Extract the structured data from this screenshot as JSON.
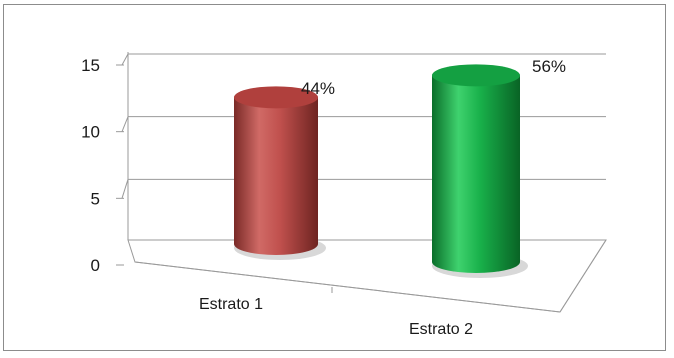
{
  "chart_data": {
    "type": "bar",
    "style": "3d-cylinder",
    "categories": [
      "Estrato 1",
      "Estrato 2"
    ],
    "values": [
      11,
      14
    ],
    "data_labels": [
      "44%",
      "56%"
    ],
    "colors": [
      "#c0504d",
      "#18b04a"
    ],
    "ylim": [
      0,
      15
    ],
    "yticks": [
      "0",
      "5",
      "10",
      "15"
    ],
    "grid": true,
    "legend": "none"
  }
}
